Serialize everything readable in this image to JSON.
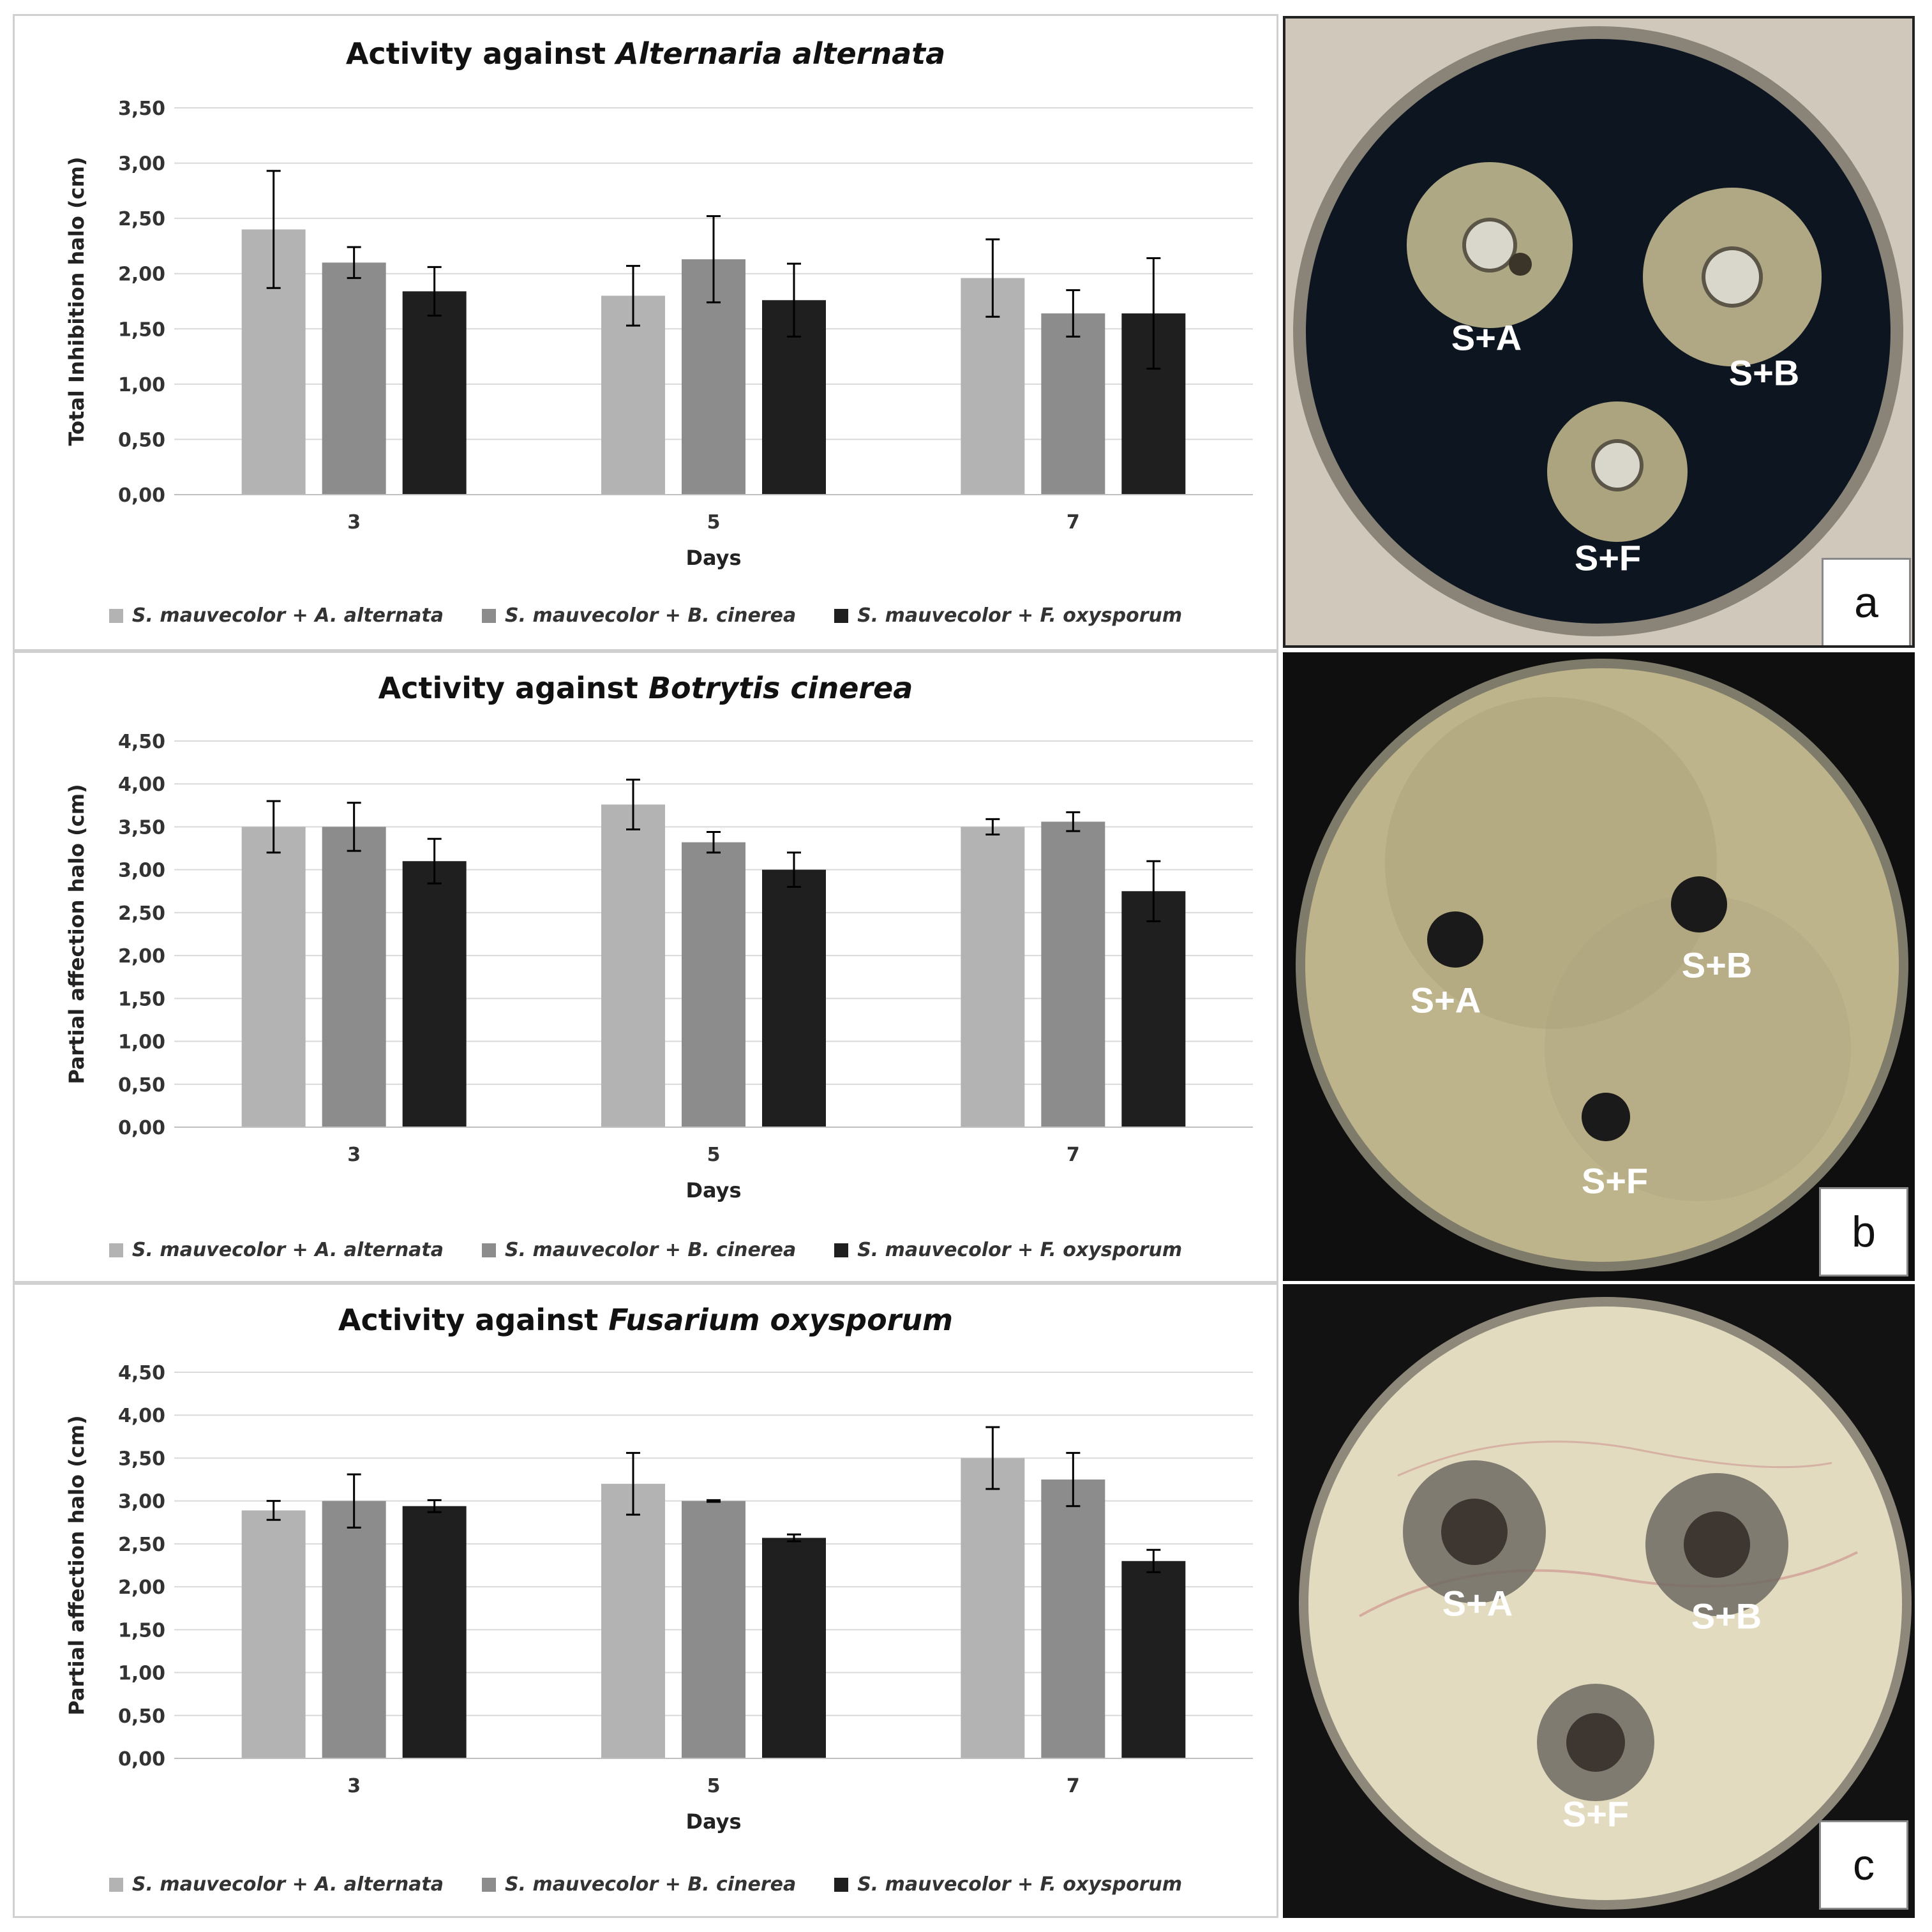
{
  "legend_labels": [
    "S. mauvecolor + A. alternata",
    "S. mauvecolor + B. cinerea",
    "S. mauvecolor + F. oxysporum"
  ],
  "colors": {
    "series1": "#b3b3b3",
    "series2": "#8c8c8c",
    "series3": "#1f1f1f"
  },
  "chart_data": [
    {
      "type": "bar",
      "title_prefix": "Activity against",
      "title_species": "Alternaria alternata",
      "xlabel": "Days",
      "ylabel": "Total Inhibition halo (cm)",
      "ylim": [
        0,
        3.5
      ],
      "yticks": [
        "0,00",
        "0,50",
        "1,00",
        "1,50",
        "2,00",
        "2,50",
        "3,00",
        "3,50"
      ],
      "categories": [
        "3",
        "5",
        "7"
      ],
      "series": [
        {
          "name": "S. mauvecolor + A. alternata",
          "values": [
            2.4,
            1.8,
            1.96
          ],
          "errors": [
            0.53,
            0.27,
            0.35
          ]
        },
        {
          "name": "S. mauvecolor + B. cinerea",
          "values": [
            2.1,
            2.13,
            1.64
          ],
          "errors": [
            0.14,
            0.39,
            0.21
          ]
        },
        {
          "name": "S. mauvecolor + F. oxysporum",
          "values": [
            1.84,
            1.76,
            1.64
          ],
          "errors": [
            0.22,
            0.33,
            0.5
          ]
        }
      ]
    },
    {
      "type": "bar",
      "title_prefix": "Activity against",
      "title_species": "Botrytis cinerea",
      "xlabel": "Days",
      "ylabel": "Partial affection halo (cm)",
      "ylim": [
        0,
        4.5
      ],
      "yticks": [
        "0,00",
        "0,50",
        "1,00",
        "1,50",
        "2,00",
        "2,50",
        "3,00",
        "3,50",
        "4,00",
        "4,50"
      ],
      "categories": [
        "3",
        "5",
        "7"
      ],
      "series": [
        {
          "name": "S. mauvecolor + A. alternata",
          "values": [
            3.5,
            3.76,
            3.5
          ],
          "errors": [
            0.3,
            0.29,
            0.09
          ]
        },
        {
          "name": "S. mauvecolor + B. cinerea",
          "values": [
            3.5,
            3.32,
            3.56
          ],
          "errors": [
            0.28,
            0.12,
            0.11
          ]
        },
        {
          "name": "S. mauvecolor + F. oxysporum",
          "values": [
            3.1,
            3.0,
            2.75
          ],
          "errors": [
            0.26,
            0.2,
            0.35
          ]
        }
      ]
    },
    {
      "type": "bar",
      "title_prefix": "Activity against",
      "title_species": "Fusarium oxysporum",
      "xlabel": "Days",
      "ylabel": "Partial affection halo (cm)",
      "ylim": [
        0,
        4.5
      ],
      "yticks": [
        "0,00",
        "0,50",
        "1,00",
        "1,50",
        "2,00",
        "2,50",
        "3,00",
        "3,50",
        "4,00",
        "4,50"
      ],
      "categories": [
        "3",
        "5",
        "7"
      ],
      "series": [
        {
          "name": "S. mauvecolor + A. alternata",
          "values": [
            2.89,
            3.2,
            3.5
          ],
          "errors": [
            0.11,
            0.36,
            0.36
          ]
        },
        {
          "name": "S. mauvecolor + B. cinerea",
          "values": [
            3.0,
            3.0,
            3.25
          ],
          "errors": [
            0.31,
            0.01,
            0.31
          ]
        },
        {
          "name": "S. mauvecolor + F. oxysporum",
          "values": [
            2.94,
            2.57,
            2.3
          ],
          "errors": [
            0.07,
            0.04,
            0.13
          ]
        }
      ]
    }
  ],
  "photos": [
    {
      "label": "a",
      "spots": [
        "S+A",
        "S+B",
        "S+F"
      ]
    },
    {
      "label": "b",
      "spots": [
        "S+A",
        "S+B",
        "S+F"
      ]
    },
    {
      "label": "c",
      "spots": [
        "S+A",
        "S+B",
        "S+F"
      ]
    }
  ]
}
